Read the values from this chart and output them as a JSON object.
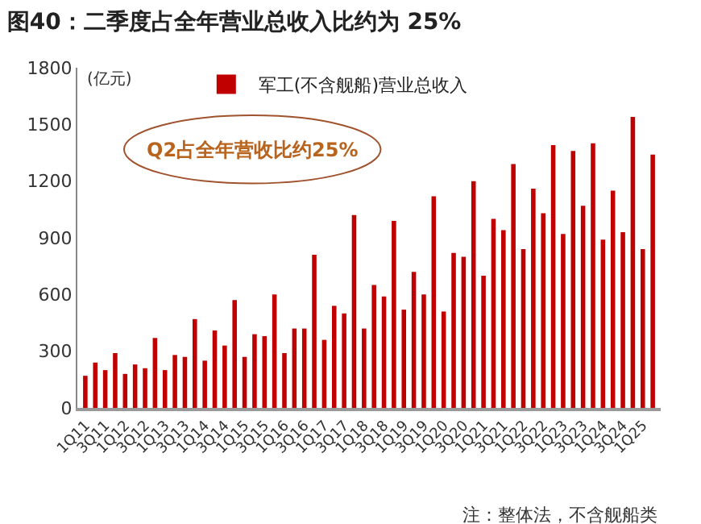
{
  "chart_data": {
    "type": "bar",
    "title": "图40：二季度占全年营业总收入比约为 25%",
    "ylabel": "(亿元)",
    "categories": [
      "1Q11",
      null,
      "3Q11",
      null,
      "1Q12",
      null,
      "3Q12",
      null,
      "1Q13",
      null,
      "3Q13",
      null,
      "1Q14",
      null,
      "3Q14",
      null,
      "1Q15",
      null,
      "3Q15",
      null,
      "1Q16",
      null,
      "3Q16",
      null,
      "1Q17",
      null,
      "3Q17",
      null,
      "1Q18",
      null,
      "3Q18",
      null,
      "1Q19",
      null,
      "3Q19",
      null,
      "1Q20",
      null,
      "3Q20",
      null,
      "1Q21",
      null,
      "3Q21",
      null,
      "1Q22",
      null,
      "3Q22",
      null,
      "1Q23",
      null,
      "3Q23",
      null,
      "1Q24",
      null,
      "3Q24",
      null,
      "1Q25",
      null
    ],
    "series": [
      {
        "name": "军工(不含舰船)营业总收入",
        "color": "#c00000",
        "values": [
          170,
          240,
          200,
          290,
          180,
          230,
          210,
          370,
          200,
          280,
          270,
          470,
          250,
          410,
          330,
          570,
          270,
          390,
          380,
          600,
          290,
          420,
          420,
          810,
          360,
          540,
          500,
          1020,
          420,
          650,
          590,
          990,
          520,
          720,
          600,
          1120,
          510,
          820,
          800,
          1200,
          700,
          1000,
          940,
          1290,
          840,
          1160,
          1030,
          1390,
          920,
          1360,
          1070,
          1400,
          890,
          1150,
          930,
          1540,
          840,
          1340
        ]
      }
    ],
    "ylim": [
      0,
      1800
    ],
    "yticks": [
      0,
      300,
      600,
      900,
      1200,
      1500,
      1800
    ],
    "legend": "top",
    "annotations": [
      "Q2占全年营收比约25%",
      "注：整体法，不含舰船类"
    ]
  }
}
